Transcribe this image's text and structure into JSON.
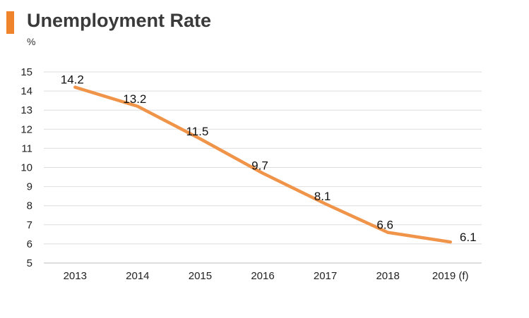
{
  "title": "Unemployment Rate",
  "unit_label": "%",
  "accent_color": "#f0842c",
  "chart_data": {
    "type": "line",
    "title": "Unemployment Rate",
    "ylabel": "%",
    "xlabel": "",
    "categories": [
      "2013",
      "2014",
      "2015",
      "2016",
      "2017",
      "2018",
      "2019 (f)"
    ],
    "series": [
      {
        "values": [
          14.2,
          13.2,
          11.5,
          9.7,
          8.1,
          6.6,
          6.1
        ],
        "labels": [
          "14.2",
          "13.2",
          "11.5",
          "9.7",
          "8.1",
          "6.6",
          "6.1"
        ],
        "color": "#f0944a"
      }
    ],
    "ylim": [
      5,
      15
    ],
    "yticks": [
      5,
      6,
      7,
      8,
      9,
      10,
      11,
      12,
      13,
      14,
      15
    ],
    "grid": true,
    "legend": "none"
  }
}
